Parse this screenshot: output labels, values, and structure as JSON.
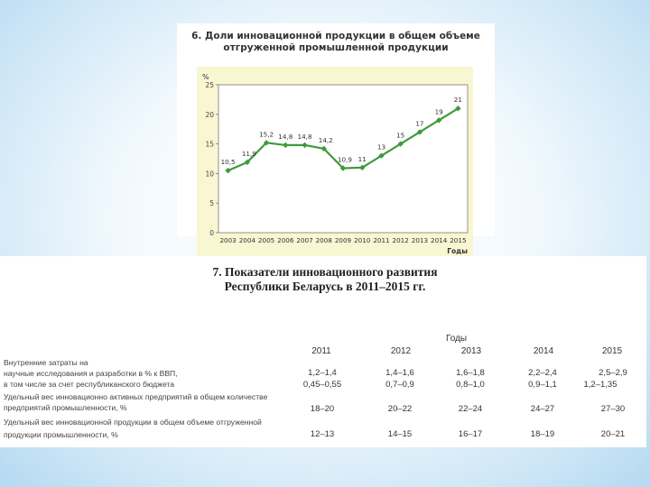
{
  "chart_data": {
    "type": "line",
    "title": "6. Доли инновационной продукции в общем объеме отгруженной промышленной продукции",
    "title_lines": [
      "6. Доли инновационной продукции в общем объеме",
      "отгруженной промышленной продукции"
    ],
    "ylabel": "%",
    "xlabel": "Годы",
    "x": [
      "2003",
      "2004",
      "2005",
      "2006",
      "2007",
      "2008",
      "2009",
      "2010",
      "2011",
      "2012",
      "2013",
      "2014",
      "2015"
    ],
    "series": [
      {
        "values": [
          10.5,
          11.9,
          15.2,
          14.8,
          14.8,
          14.2,
          10.9,
          11,
          13,
          15,
          17,
          19,
          21
        ],
        "labels": [
          "10,5",
          "11,9",
          "15,2",
          "14,8",
          "14,8",
          "14,2",
          "10,9",
          "11",
          "13",
          "15",
          "17",
          "19",
          "21"
        ]
      }
    ],
    "ylim": [
      0,
      25
    ],
    "yticks": [
      0,
      5,
      10,
      15,
      20,
      25
    ],
    "ytick_labels": [
      "0",
      "5",
      "10",
      "15",
      "20",
      "25"
    ],
    "grid": false,
    "colors": {
      "line": "#3f9a3a",
      "plot_bg": "#ffffff",
      "area_bg": "#f9f6d2"
    }
  },
  "table": {
    "title_lines": [
      "7. Показатели инновационного развития",
      "Республики Беларусь в 2011–2015 гг."
    ],
    "years_caption": "Годы",
    "years": [
      "2011",
      "2012",
      "2013",
      "2014",
      "2015"
    ],
    "row_labels": [
      "Внутренние затраты на",
      "научные исследования и разработки в % к ВВП,",
      "в том числе за счет республиканского бюджета",
      "Удельный вес инновационно активных предприятий в общем количестве",
      "предприятий промышленности, %",
      "Удельный вес инновационной продукции в общем объеме отгруженной",
      "продукции промышленности, %"
    ],
    "rows": [
      [
        "1,2–1,4",
        "1,4–1,6",
        "1,6–1,8",
        "2,2–2,4",
        "2,5–2,9"
      ],
      [
        "0,45–0,55",
        "0,7–0,9",
        "0,8–1,0",
        "0,9–1,1",
        "1,2–1,35"
      ],
      [
        "18–20",
        "20–22",
        "22–24",
        "24–27",
        "27–30"
      ],
      [
        "12–13",
        "14–15",
        "16–17",
        "18–19",
        "20–21"
      ]
    ]
  }
}
